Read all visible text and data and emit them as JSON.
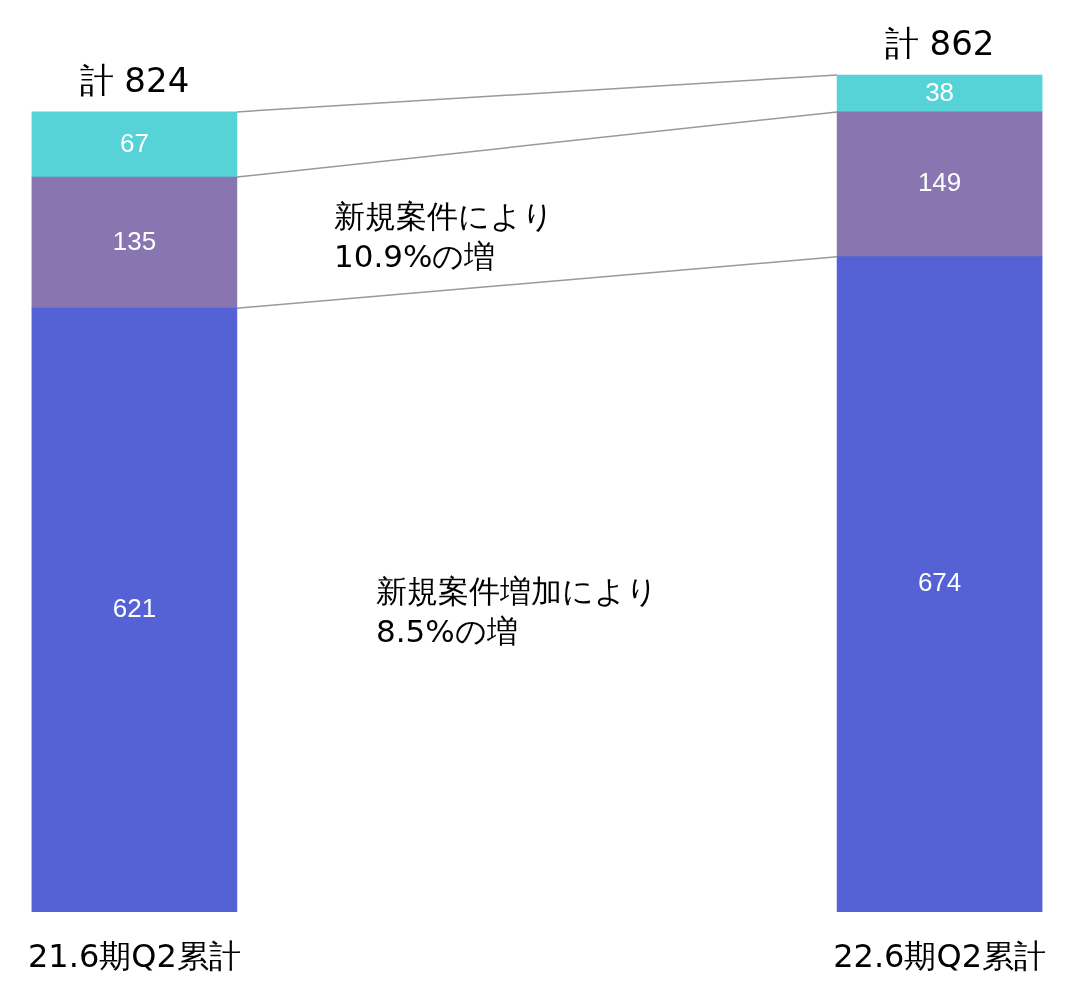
{
  "chart_data": {
    "type": "bar",
    "stacked": true,
    "categories": [
      "21.6期Q2累計",
      "22.6期Q2累計"
    ],
    "series": [
      {
        "color": "#5462d6",
        "values": [
          621,
          674
        ]
      },
      {
        "color": "#8976b0",
        "values": [
          135,
          149
        ]
      },
      {
        "color": "#56d3d6",
        "values": [
          67,
          38
        ]
      }
    ],
    "data_labels": true,
    "totals": [
      "計 824",
      "計 862"
    ],
    "legend": false,
    "grid": false,
    "annotations": [
      "新規案件により10.9%の増",
      "新規案件増加により8.5%の増"
    ]
  }
}
